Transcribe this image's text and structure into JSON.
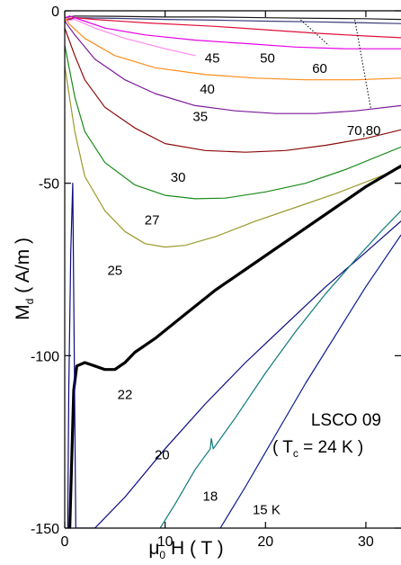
{
  "chart_data": {
    "type": "line",
    "xlabel": {
      "main": "μ",
      "sub": "0",
      "rest": " H  ( T )"
    },
    "ylabel": {
      "main": "M",
      "sub": "d",
      "rest": " ( A/m )"
    },
    "xlim": [
      0,
      33.5
    ],
    "ylim": [
      -150,
      0
    ],
    "x_ticks": [
      0,
      10,
      20,
      30
    ],
    "y_ticks": [
      0,
      -50,
      -100,
      -150
    ],
    "grid": false,
    "legend": "none",
    "annotations": {
      "sample": "LSCO 09",
      "tc_prefix": "( T",
      "tc_sub": "c",
      "tc_suffix": " = 24 K )"
    },
    "series": [
      {
        "name": "80",
        "color": "#1a1a1a",
        "width": 1.2,
        "points": [
          [
            0,
            -2
          ],
          [
            1,
            -1.5
          ],
          [
            5,
            -1.6
          ],
          [
            10,
            -1.8
          ],
          [
            15,
            -1.8
          ],
          [
            20,
            -2
          ],
          [
            25,
            -2.2
          ],
          [
            30,
            -2.3
          ],
          [
            33.5,
            -2.5
          ]
        ]
      },
      {
        "name": "70",
        "color": "#3a3a7a",
        "width": 1.2,
        "points": [
          [
            0,
            -3
          ],
          [
            1,
            -2
          ],
          [
            5,
            -2.2
          ],
          [
            10,
            -2.5
          ],
          [
            15,
            -2.7
          ],
          [
            20,
            -3
          ],
          [
            25,
            -3.2
          ],
          [
            30,
            -3.5
          ],
          [
            33.5,
            -3.7
          ]
        ]
      },
      {
        "name": "60",
        "color": "#e0103a",
        "width": 1.2,
        "points": [
          [
            0,
            -2.5
          ],
          [
            1,
            -2
          ],
          [
            3,
            -2.5
          ],
          [
            8,
            -3.5
          ],
          [
            15,
            -4.5
          ],
          [
            20,
            -5.5
          ],
          [
            25,
            -6.5
          ],
          [
            30,
            -7.3
          ],
          [
            33.5,
            -7.8
          ]
        ]
      },
      {
        "name": "50",
        "color": "#e600e6",
        "width": 1.2,
        "points": [
          [
            0,
            -2
          ],
          [
            0.5,
            -1.5
          ],
          [
            2,
            -3
          ],
          [
            4,
            -5
          ],
          [
            8,
            -7
          ],
          [
            13,
            -8.5
          ],
          [
            18,
            -9.5
          ],
          [
            23,
            -10.5
          ],
          [
            28,
            -11
          ],
          [
            33.5,
            -11
          ]
        ]
      },
      {
        "name": "45",
        "color": "#ff88ee",
        "width": 1.2,
        "points": [
          [
            0,
            -3
          ],
          [
            1,
            -2.5
          ],
          [
            3,
            -5
          ],
          [
            6,
            -8
          ],
          [
            10,
            -11
          ],
          [
            13,
            -13
          ]
        ]
      },
      {
        "name": "40",
        "color": "#ff8c1a",
        "width": 1.2,
        "points": [
          [
            0,
            -2
          ],
          [
            0.5,
            -4
          ],
          [
            2,
            -8
          ],
          [
            5,
            -13
          ],
          [
            9,
            -16.5
          ],
          [
            14,
            -18.5
          ],
          [
            19,
            -19.5
          ],
          [
            24,
            -20
          ],
          [
            29,
            -20
          ],
          [
            33.5,
            -19.5
          ]
        ]
      },
      {
        "name": "35",
        "color": "#7b1a9a",
        "width": 1.2,
        "points": [
          [
            0,
            -3
          ],
          [
            1,
            -7
          ],
          [
            3,
            -14
          ],
          [
            6,
            -20
          ],
          [
            9,
            -24
          ],
          [
            13,
            -27.5
          ],
          [
            17,
            -29
          ],
          [
            21,
            -29.8
          ],
          [
            25,
            -29.8
          ],
          [
            29,
            -29
          ],
          [
            33.5,
            -27.5
          ]
        ]
      },
      {
        "name": "30",
        "color": "#8b0a0a",
        "width": 1.2,
        "points": [
          [
            0,
            -5
          ],
          [
            1,
            -13
          ],
          [
            2,
            -20
          ],
          [
            4,
            -28
          ],
          [
            7,
            -34
          ],
          [
            10,
            -38.5
          ],
          [
            14,
            -40.5
          ],
          [
            18,
            -41
          ],
          [
            22,
            -40.5
          ],
          [
            26,
            -39
          ],
          [
            30,
            -37
          ],
          [
            33.5,
            -34.5
          ]
        ]
      },
      {
        "name": "27",
        "color": "#1a8a1a",
        "width": 1.2,
        "points": [
          [
            0,
            -10
          ],
          [
            1,
            -25
          ],
          [
            2,
            -35
          ],
          [
            4,
            -44
          ],
          [
            7,
            -50.5
          ],
          [
            10,
            -53.5
          ],
          [
            13,
            -54.5
          ],
          [
            16,
            -54.3
          ],
          [
            20,
            -52.5
          ],
          [
            24,
            -50
          ],
          [
            28,
            -46
          ],
          [
            33.5,
            -39.5
          ]
        ]
      },
      {
        "name": "25",
        "color": "#9a9a2a",
        "width": 1.2,
        "points": [
          [
            0,
            -16
          ],
          [
            1,
            -35
          ],
          [
            2,
            -48
          ],
          [
            4,
            -58
          ],
          [
            6,
            -64
          ],
          [
            8,
            -67.5
          ],
          [
            10,
            -68.5
          ],
          [
            12,
            -68
          ],
          [
            15,
            -65.5
          ],
          [
            19,
            -61
          ],
          [
            23,
            -57
          ],
          [
            27,
            -53
          ],
          [
            31,
            -48.5
          ],
          [
            33.5,
            -45.5
          ]
        ]
      },
      {
        "name": "22",
        "color": "#000000",
        "width": 3.2,
        "points": [
          [
            0.5,
            -150
          ],
          [
            0.7,
            -130
          ],
          [
            0.9,
            -110
          ],
          [
            1.2,
            -103
          ],
          [
            2,
            -102
          ],
          [
            3,
            -103
          ],
          [
            4,
            -104
          ],
          [
            5,
            -104
          ],
          [
            6,
            -102
          ],
          [
            7,
            -99
          ],
          [
            9,
            -95
          ],
          [
            12,
            -88
          ],
          [
            15,
            -81
          ],
          [
            18,
            -75
          ],
          [
            21,
            -69
          ],
          [
            24,
            -63
          ],
          [
            27,
            -57
          ],
          [
            30,
            -51
          ],
          [
            33.5,
            -45
          ]
        ]
      },
      {
        "name": "20",
        "color": "#0a0a80",
        "width": 1.2,
        "points": [
          [
            0.3,
            -150
          ],
          [
            0.4,
            -110
          ],
          [
            0.6,
            -70
          ],
          [
            0.8,
            -50
          ],
          [
            1.1,
            -150
          ],
          [
            3,
            -150
          ],
          [
            6,
            -141
          ],
          [
            10,
            -127
          ],
          [
            14,
            -114
          ],
          [
            18,
            -102
          ],
          [
            22,
            -91
          ],
          [
            26,
            -80
          ],
          [
            30,
            -70
          ],
          [
            33.5,
            -61
          ]
        ]
      },
      {
        "name": "18",
        "color": "#107a7a",
        "width": 1.2,
        "points": [
          [
            9.5,
            -150
          ],
          [
            11,
            -143
          ],
          [
            13,
            -133
          ],
          [
            14.5,
            -127
          ],
          [
            14.6,
            -124
          ],
          [
            14.8,
            -127
          ],
          [
            17,
            -118
          ],
          [
            20,
            -105
          ],
          [
            23,
            -93
          ],
          [
            26,
            -82
          ],
          [
            29,
            -72
          ],
          [
            31.5,
            -64
          ],
          [
            33.5,
            -58
          ]
        ]
      },
      {
        "name": "15 K",
        "color": "#0a1a90",
        "width": 1.2,
        "points": [
          [
            15.5,
            -150
          ],
          [
            18,
            -138
          ],
          [
            21,
            -123
          ],
          [
            24,
            -108
          ],
          [
            27,
            -94
          ],
          [
            30,
            -80
          ],
          [
            33.5,
            -65
          ]
        ]
      }
    ],
    "curve_labels": [
      {
        "text": "45",
        "x": 14.7,
        "y": -15
      },
      {
        "text": "50",
        "x": 20.2,
        "y": -15
      },
      {
        "text": "60",
        "x": 25.4,
        "y": -18
      },
      {
        "text": "40",
        "x": 14.2,
        "y": -24
      },
      {
        "text": "35",
        "x": 13.5,
        "y": -32
      },
      {
        "text": "70,80",
        "x": 29.8,
        "y": -36
      },
      {
        "text": "30",
        "x": 11.3,
        "y": -49.5
      },
      {
        "text": "27",
        "x": 8.7,
        "y": -62
      },
      {
        "text": "25",
        "x": 5,
        "y": -76.5
      },
      {
        "text": "22",
        "x": 6,
        "y": -112.5
      },
      {
        "text": "20",
        "x": 9.7,
        "y": -130
      },
      {
        "text": "18",
        "x": 14.5,
        "y": -142
      },
      {
        "text": "15 K",
        "x": 20.1,
        "y": -146
      }
    ]
  }
}
